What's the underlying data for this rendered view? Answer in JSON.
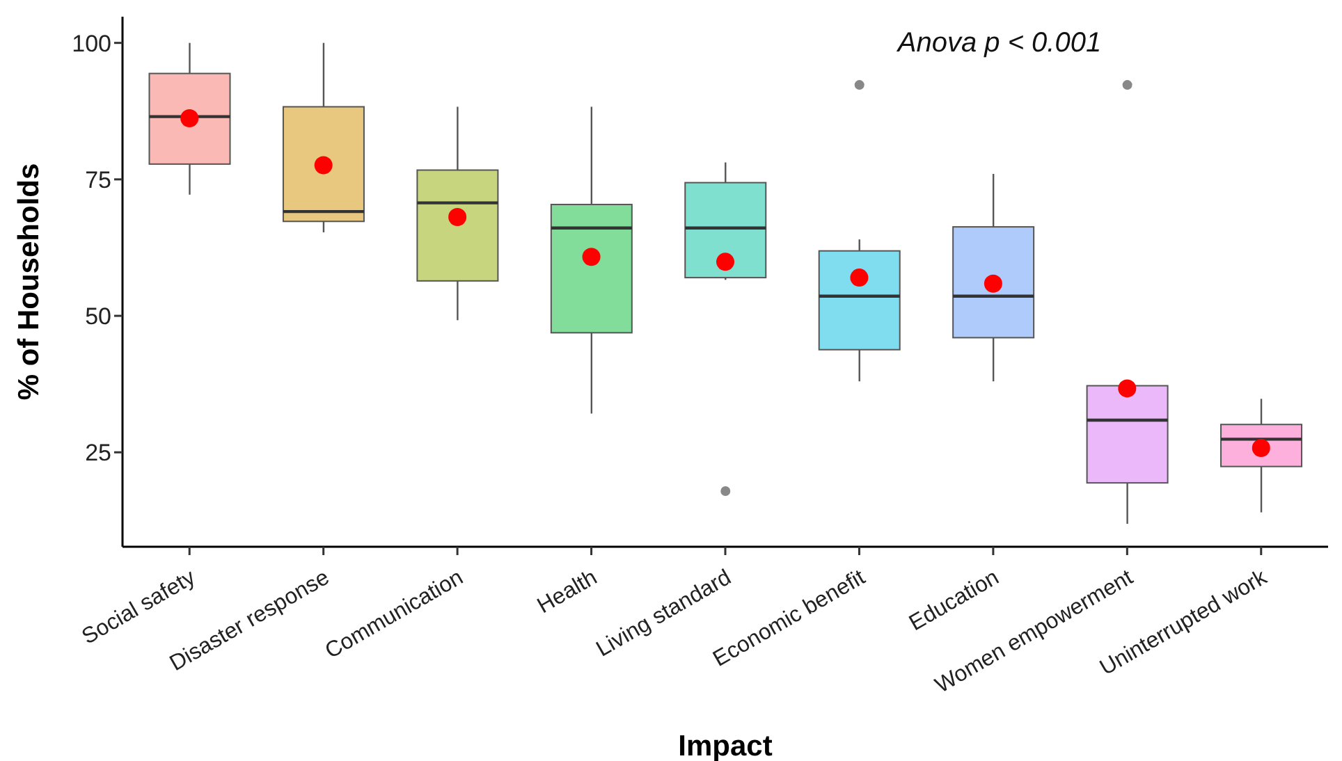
{
  "chart_data": {
    "type": "box",
    "xlabel": "Impact",
    "ylabel": "% of Households",
    "annotations": [
      "Anova p < 0.001"
    ],
    "categories": [
      "Social safety",
      "Disaster response",
      "Communication",
      "Health",
      "Living standard",
      "Economic benefit",
      "Education",
      "Women empowerment",
      "Uninterrupted work"
    ],
    "colors": [
      "#fbb9b5",
      "#e8c87f",
      "#c8d57f",
      "#82dc9a",
      "#7fe0cf",
      "#80dcef",
      "#aecbfc",
      "#ebb9f9",
      "#fdb0dc"
    ],
    "boxes": [
      {
        "low": 72.2,
        "q1": 77.8,
        "median": 86.5,
        "q3": 94.4,
        "high": 100
      },
      {
        "low": 65.3,
        "q1": 67.3,
        "median": 69.1,
        "q3": 88.3,
        "high": 100
      },
      {
        "low": 49.2,
        "q1": 56.4,
        "median": 70.7,
        "q3": 76.7,
        "high": 88.3
      },
      {
        "low": 32.1,
        "q1": 46.9,
        "median": 66.1,
        "q3": 70.4,
        "high": 88.3
      },
      {
        "low": 56.6,
        "q1": 57.0,
        "median": 66.1,
        "q3": 74.4,
        "high": 78.1,
        "outliers": [
          17.9
        ]
      },
      {
        "low": 38.0,
        "q1": 43.8,
        "median": 53.6,
        "q3": 61.9,
        "high": 64.0,
        "outliers": [
          92.3
        ]
      },
      {
        "low": 38.0,
        "q1": 46.0,
        "median": 53.6,
        "q3": 66.3,
        "high": 76.0
      },
      {
        "low": 11.9,
        "q1": 19.4,
        "median": 30.9,
        "q3": 37.2,
        "high": 37.2,
        "outliers": [
          92.3
        ]
      },
      {
        "low": 14.0,
        "q1": 22.4,
        "median": 27.4,
        "q3": 30.1,
        "high": 34.8
      }
    ],
    "series": [
      {
        "type": "scatter",
        "color": "#ff0000",
        "x": [
          "Social safety",
          "Disaster response",
          "Communication",
          "Health",
          "Living standard",
          "Economic benefit",
          "Education",
          "Women empowerment",
          "Uninterrupted work"
        ],
        "values": [
          86.2,
          77.6,
          68.1,
          60.8,
          59.9,
          57.0,
          55.9,
          36.7,
          25.8
        ]
      }
    ],
    "ylim": [
      7.7,
      104.8
    ],
    "yticks": [
      25,
      50,
      75,
      100
    ],
    "marker": "circle"
  }
}
